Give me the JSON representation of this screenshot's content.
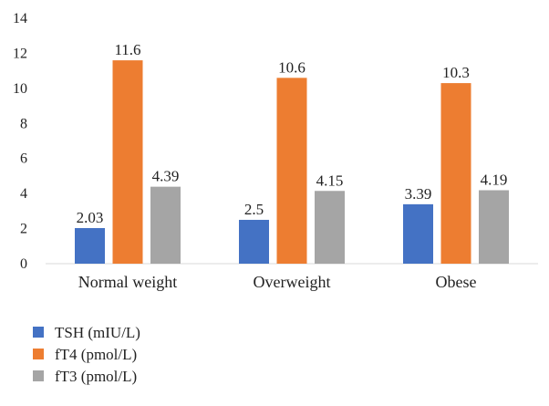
{
  "chart_data": {
    "type": "bar",
    "title": "",
    "xlabel": "",
    "ylabel": "",
    "categories": [
      "Normal weight",
      "Overweight",
      "Obese"
    ],
    "series": [
      {
        "name": "TSH (mIU/L)",
        "values": [
          2.03,
          2.5,
          3.39
        ],
        "labels": [
          "2.03",
          "2.5",
          "3.39"
        ],
        "color": "#4472C4"
      },
      {
        "name": "fT4 (pmol/L)",
        "values": [
          11.6,
          10.6,
          10.3
        ],
        "labels": [
          "11.6",
          "10.6",
          "10.3"
        ],
        "color": "#ED7D31"
      },
      {
        "name": "fT3 (pmol/L)",
        "values": [
          4.39,
          4.15,
          4.19
        ],
        "labels": [
          "4.39",
          "4.15",
          "4.19"
        ],
        "color": "#A5A5A5"
      }
    ],
    "ylim": [
      0,
      14
    ],
    "yticks": [
      "0",
      "2",
      "4",
      "6",
      "8",
      "10",
      "12",
      "14"
    ],
    "grid": false,
    "legend_position": "bottom-left"
  }
}
